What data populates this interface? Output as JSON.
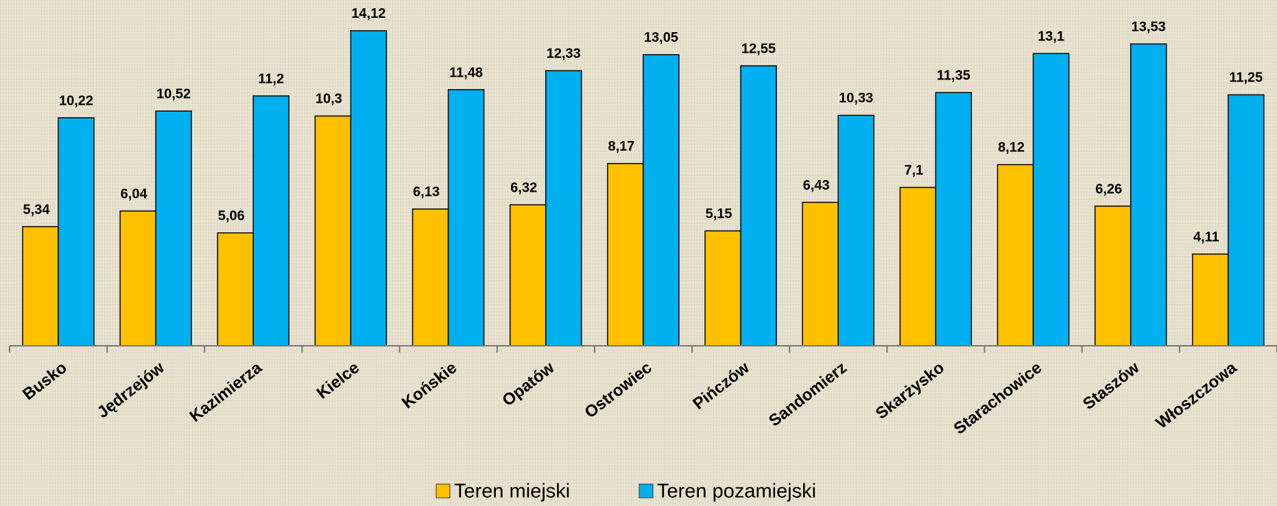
{
  "chart_data": {
    "type": "bar",
    "categories": [
      "Busko",
      "Jędrzejów",
      "Kazimierza",
      "Kielce",
      "Końskie",
      "Opatów",
      "Ostrowiec",
      "Pińczów",
      "Sandomierz",
      "Skarżysko",
      "Starachowice",
      "Staszów",
      "Włoszczowa"
    ],
    "series": [
      {
        "name": "Teren miejski",
        "color": "#ffc000",
        "values": [
          5.34,
          6.04,
          5.06,
          10.3,
          6.13,
          6.32,
          8.17,
          5.15,
          6.43,
          7.1,
          8.12,
          6.26,
          4.11
        ],
        "value_labels": [
          "5,34",
          "6,04",
          "5,06",
          "10,3",
          "6,13",
          "6,32",
          "8,17",
          "5,15",
          "6,43",
          "7,1",
          "8,12",
          "6,26",
          "4,11"
        ]
      },
      {
        "name": "Teren pozamiejski",
        "color": "#00b0f0",
        "values": [
          10.22,
          10.52,
          11.2,
          14.12,
          11.48,
          12.33,
          13.05,
          12.55,
          10.33,
          11.35,
          13.1,
          13.53,
          11.25
        ],
        "value_labels": [
          "10,22",
          "10,52",
          "11,2",
          "14,12",
          "11,48",
          "12,33",
          "13,05",
          "12,55",
          "10,33",
          "11,35",
          "13,1",
          "13,53",
          "11,25"
        ]
      }
    ],
    "ylim": [
      0,
      15.5
    ],
    "legend": "bottom"
  }
}
